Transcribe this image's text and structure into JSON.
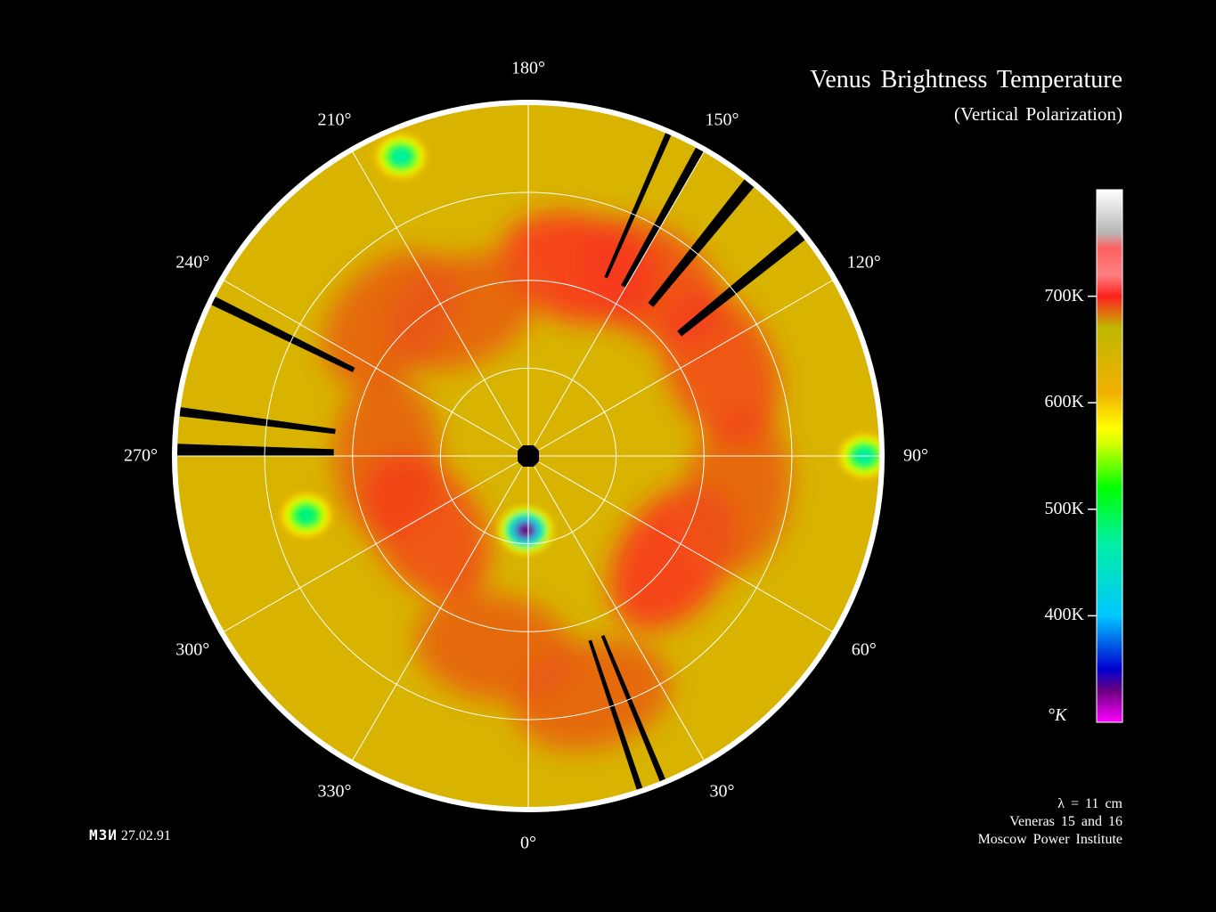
{
  "title": "Venus Brightness Temperature",
  "subtitle": "(Vertical Polarization)",
  "credit_code": "МЗИ",
  "credit_date": "27.02.91",
  "notes": [
    "λ = 11 cm",
    "Veneras 15 and 16",
    "Moscow Power Institute"
  ],
  "chart_data": {
    "type": "heatmap",
    "projection": "polar",
    "angle_labels": [
      {
        "deg": 0,
        "text": "0°"
      },
      {
        "deg": 30,
        "text": "30°"
      },
      {
        "deg": 60,
        "text": "60°"
      },
      {
        "deg": 90,
        "text": "90°"
      },
      {
        "deg": 120,
        "text": "120°"
      },
      {
        "deg": 150,
        "text": "150°"
      },
      {
        "deg": 180,
        "text": "180°"
      },
      {
        "deg": 210,
        "text": "210°"
      },
      {
        "deg": 240,
        "text": "240°"
      },
      {
        "deg": 270,
        "text": "270°"
      },
      {
        "deg": 300,
        "text": "300°"
      },
      {
        "deg": 330,
        "text": "330°"
      }
    ],
    "rings": 3,
    "colorbar": {
      "range": [
        300,
        800
      ],
      "ticks": [
        {
          "value": 700,
          "label": "700K"
        },
        {
          "value": 600,
          "label": "600K"
        },
        {
          "value": 500,
          "label": "500K"
        },
        {
          "value": 400,
          "label": "400K"
        }
      ],
      "unit_label": "°K",
      "stops": [
        {
          "value": 300,
          "color": "#ff00ff"
        },
        {
          "value": 330,
          "color": "#6a0080"
        },
        {
          "value": 350,
          "color": "#0000d0"
        },
        {
          "value": 400,
          "color": "#00c8ff"
        },
        {
          "value": 470,
          "color": "#00f0a0"
        },
        {
          "value": 520,
          "color": "#00ff00"
        },
        {
          "value": 560,
          "color": "#ccff00"
        },
        {
          "value": 575,
          "color": "#ffff00"
        },
        {
          "value": 610,
          "color": "#f0b000"
        },
        {
          "value": 670,
          "color": "#c0b800"
        },
        {
          "value": 700,
          "color": "#ff2020"
        },
        {
          "value": 720,
          "color": "#ff8080"
        },
        {
          "value": 745,
          "color": "#ff6060"
        },
        {
          "value": 760,
          "color": "#b8b8b8"
        },
        {
          "value": 800,
          "color": "#ffffff"
        }
      ]
    },
    "background_temperature": 640,
    "hot_regions": [
      {
        "angle": 165,
        "r": 0.55,
        "temp": 700
      },
      {
        "angle": 205,
        "r": 0.45,
        "temp": 690
      },
      {
        "angle": 225,
        "r": 0.55,
        "temp": 690
      },
      {
        "angle": 270,
        "r": 0.4,
        "temp": 690
      },
      {
        "angle": 305,
        "r": 0.35,
        "temp": 695
      },
      {
        "angle": 350,
        "r": 0.55,
        "temp": 690
      },
      {
        "angle": 15,
        "r": 0.7,
        "temp": 690
      },
      {
        "angle": 55,
        "r": 0.5,
        "temp": 700
      },
      {
        "angle": 80,
        "r": 0.6,
        "temp": 690
      },
      {
        "angle": 115,
        "r": 0.6,
        "temp": 695
      },
      {
        "angle": 145,
        "r": 0.6,
        "temp": 695
      }
    ],
    "cold_spots": [
      {
        "angle": 90,
        "r": 0.95,
        "temp": 470
      },
      {
        "angle": 203,
        "r": 0.92,
        "temp": 470
      },
      {
        "angle": 285,
        "r": 0.65,
        "temp": 480
      },
      {
        "angle": 358,
        "r": 0.21,
        "temp": 330
      }
    ]
  }
}
